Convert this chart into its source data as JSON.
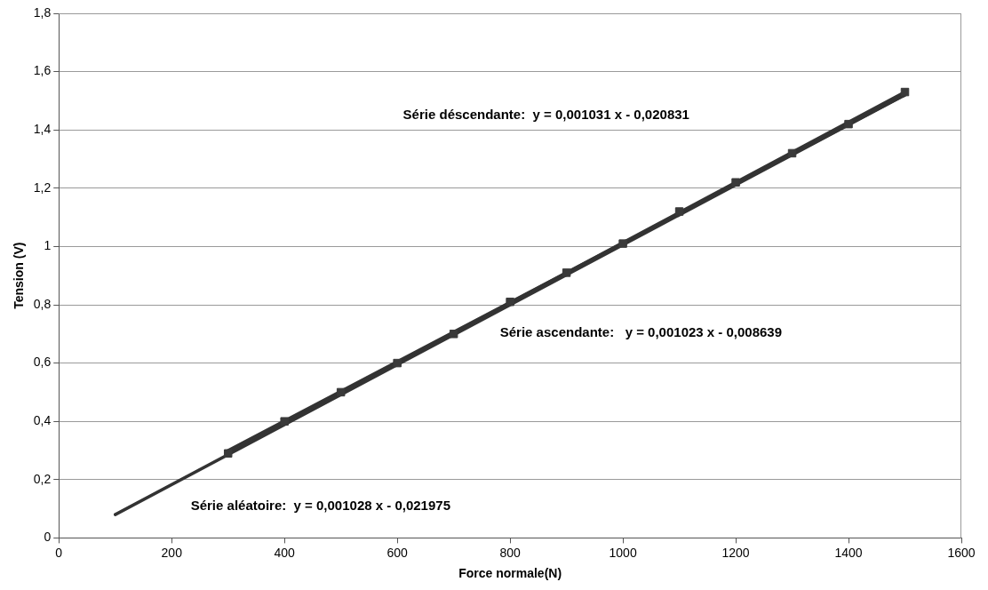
{
  "chart_data": {
    "type": "scatter",
    "xlabel": "Force normale(N)",
    "ylabel": "Tension (V)",
    "x": [
      300,
      400,
      500,
      600,
      700,
      800,
      900,
      1000,
      1100,
      1200,
      1300,
      1400,
      1500
    ],
    "marker": "square",
    "series": [
      {
        "color": "#3a3a3a",
        "values": [
          0.29,
          0.4,
          0.5,
          0.6,
          0.7,
          0.81,
          0.91,
          1.01,
          1.12,
          1.22,
          1.32,
          1.42,
          1.53
        ]
      },
      {
        "type": "line",
        "marker": "none",
        "color": "#333333",
        "x": [
          100,
          1500
        ],
        "values": [
          0.08,
          1.52
        ]
      },
      {
        "type": "line",
        "marker": "none",
        "color": "#333333",
        "x": [
          300,
          1500
        ],
        "values": [
          0.29,
          1.53
        ]
      },
      {
        "type": "line",
        "marker": "none",
        "color": "#333333",
        "x": [
          300,
          1500
        ],
        "values": [
          0.3,
          1.52
        ]
      }
    ],
    "xlim": [
      0,
      1600
    ],
    "xticks": [
      0,
      200,
      400,
      600,
      800,
      1000,
      1200,
      1400,
      1600
    ],
    "ylim": [
      0,
      1.8
    ],
    "yticks": [
      0,
      {
        "value": 0.2,
        "label": "0,2"
      },
      {
        "value": 0.4,
        "label": "0,4"
      },
      {
        "value": 0.6,
        "label": "0,6"
      },
      {
        "value": 0.8,
        "label": "0,8"
      },
      1,
      {
        "value": 1.2,
        "label": "1,2"
      },
      {
        "value": 1.4,
        "label": "1,4"
      },
      {
        "value": 1.6,
        "label": "1,6"
      },
      {
        "value": 1.8,
        "label": "1,8"
      }
    ],
    "grid": "y",
    "legend": false,
    "annotations": [
      "Série déscendante:  y = 0,001031 x - 0,020831",
      "Série ascendante:   y = 0,001023 x - 0,008639",
      "Série aléatoire:  y = 0,001028 x - 0,021975"
    ]
  }
}
